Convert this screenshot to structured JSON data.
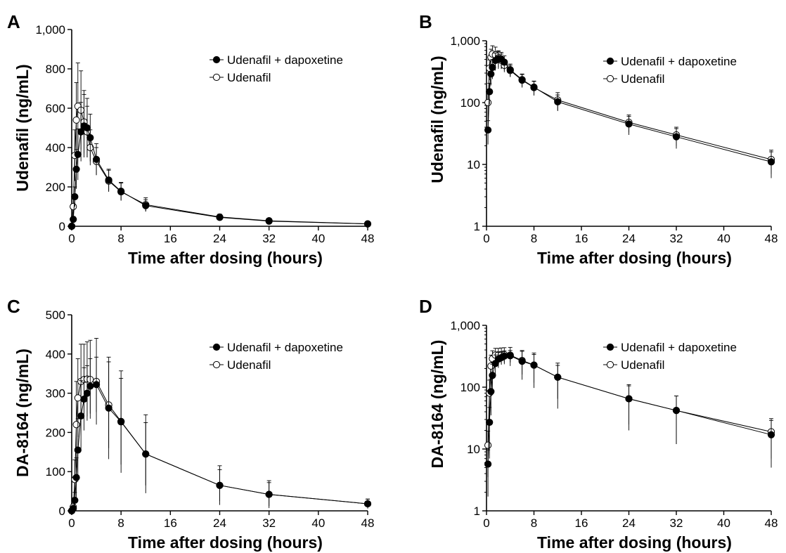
{
  "figure": {
    "x_title": "Time after dosing (hours)",
    "legend": [
      "Udenafil + dapoxetine",
      "Udenafil"
    ],
    "colors": {
      "line": "#000000",
      "filled_marker": "#000000",
      "open_marker_fill": "#ffffff"
    }
  },
  "chart_data": [
    {
      "panel": "A",
      "type": "line",
      "ylabel": "Udenafil (ng/mL)",
      "xlabel": "Time after dosing (hours)",
      "yscale": "linear",
      "xlim": [
        0,
        48
      ],
      "ylim": [
        0,
        1000
      ],
      "xticks": [
        "0",
        "8",
        "16",
        "24",
        "32",
        "40",
        "48"
      ],
      "yticks": [
        "0",
        "200",
        "400",
        "600",
        "800",
        "1,000"
      ],
      "legend_position": "top-right",
      "series": [
        {
          "name": "Udenafil + dapoxetine",
          "marker": "filled",
          "x": [
            0,
            0.25,
            0.5,
            0.75,
            1,
            1.5,
            2,
            2.5,
            3,
            4,
            6,
            8,
            12,
            24,
            32,
            48
          ],
          "y": [
            0,
            35,
            150,
            290,
            365,
            480,
            510,
            500,
            450,
            340,
            235,
            178,
            105,
            45,
            26,
            12
          ],
          "err": [
            0,
            15,
            50,
            100,
            130,
            150,
            160,
            150,
            120,
            80,
            55,
            45,
            30,
            15,
            8,
            5
          ]
        },
        {
          "name": "Udenafil",
          "marker": "open",
          "x": [
            0,
            0.25,
            0.5,
            0.75,
            1,
            1.5,
            2,
            2.5,
            3,
            4,
            6,
            8,
            12,
            24,
            32,
            48
          ],
          "y": [
            0,
            100,
            360,
            540,
            610,
            590,
            530,
            480,
            400,
            330,
            230,
            175,
            110,
            47,
            28,
            12
          ],
          "err": [
            0,
            50,
            130,
            190,
            220,
            200,
            160,
            130,
            90,
            70,
            55,
            45,
            35,
            15,
            8,
            5
          ]
        }
      ]
    },
    {
      "panel": "B",
      "type": "line",
      "ylabel": "Udenafil (ng/mL)",
      "xlabel": "Time after dosing (hours)",
      "yscale": "log",
      "xlim": [
        0,
        48
      ],
      "ylim": [
        1,
        1000
      ],
      "xticks": [
        "0",
        "8",
        "16",
        "24",
        "32",
        "40",
        "48"
      ],
      "yticks": [
        "1",
        "10",
        "100",
        "1,000"
      ],
      "legend_position": "top-right",
      "series": [
        {
          "name": "Udenafil + dapoxetine",
          "marker": "filled",
          "x": [
            0.25,
            0.5,
            0.75,
            1,
            1.5,
            2,
            2.5,
            3,
            4,
            6,
            8,
            12,
            24,
            32,
            48
          ],
          "y": [
            36,
            150,
            290,
            370,
            480,
            510,
            500,
            450,
            340,
            235,
            178,
            103,
            45,
            28,
            11
          ],
          "err": [
            15,
            55,
            100,
            130,
            150,
            160,
            150,
            120,
            80,
            55,
            45,
            30,
            15,
            10,
            5
          ]
        },
        {
          "name": "Udenafil",
          "marker": "open",
          "x": [
            0.25,
            0.5,
            0.75,
            1,
            1.5,
            2,
            2.5,
            3,
            4,
            6,
            8,
            12,
            24,
            32,
            48
          ],
          "y": [
            100,
            360,
            540,
            610,
            590,
            530,
            480,
            400,
            330,
            230,
            175,
            110,
            48,
            30,
            12
          ],
          "err": [
            50,
            130,
            190,
            220,
            200,
            160,
            130,
            90,
            70,
            55,
            45,
            35,
            15,
            10,
            5
          ]
        }
      ]
    },
    {
      "panel": "C",
      "type": "line",
      "ylabel": "DA-8164 (ng/mL)",
      "xlabel": "Time after dosing (hours)",
      "yscale": "linear",
      "xlim": [
        0,
        48
      ],
      "ylim": [
        0,
        500
      ],
      "xticks": [
        "0",
        "8",
        "16",
        "24",
        "32",
        "40",
        "48"
      ],
      "yticks": [
        "0",
        "100",
        "200",
        "300",
        "400",
        "500"
      ],
      "legend_position": "top-right",
      "series": [
        {
          "name": "Udenafil + dapoxetine",
          "marker": "filled",
          "x": [
            0,
            0.25,
            0.5,
            0.75,
            1,
            1.5,
            2,
            2.5,
            3,
            4,
            6,
            8,
            12,
            24,
            32,
            48
          ],
          "y": [
            0,
            6,
            27,
            85,
            155,
            242,
            285,
            300,
            318,
            322,
            262,
            227,
            145,
            65,
            42,
            18
          ],
          "err": [
            0,
            5,
            20,
            50,
            80,
            90,
            80,
            70,
            70,
            70,
            130,
            130,
            100,
            50,
            35,
            12
          ]
        },
        {
          "name": "Udenafil",
          "marker": "open",
          "x": [
            0,
            0.25,
            0.5,
            0.75,
            1,
            1.5,
            2,
            2.5,
            3,
            4,
            6,
            8,
            12,
            24,
            32,
            48
          ],
          "y": [
            0,
            10,
            80,
            220,
            288,
            330,
            335,
            336,
            335,
            330,
            270,
            228,
            145,
            65,
            42,
            18
          ],
          "err": [
            0,
            8,
            50,
            110,
            100,
            95,
            90,
            95,
            100,
            110,
            110,
            110,
            80,
            40,
            30,
            12
          ]
        }
      ]
    },
    {
      "panel": "D",
      "type": "line",
      "ylabel": "DA-8164 (ng/mL)",
      "xlabel": "Time after dosing (hours)",
      "yscale": "log",
      "xlim": [
        0,
        48
      ],
      "ylim": [
        1,
        1000
      ],
      "xticks": [
        "0",
        "8",
        "16",
        "24",
        "32",
        "40",
        "48"
      ],
      "yticks": [
        "1",
        "10",
        "100",
        "1,000"
      ],
      "legend_position": "top-right",
      "series": [
        {
          "name": "Udenafil + dapoxetine",
          "marker": "filled",
          "x": [
            0.25,
            0.5,
            0.75,
            1,
            1.5,
            2,
            2.5,
            3,
            4,
            6,
            8,
            12,
            24,
            32,
            48
          ],
          "y": [
            5.7,
            27,
            85,
            155,
            242,
            285,
            300,
            318,
            322,
            262,
            227,
            145,
            65,
            42,
            17
          ],
          "err": [
            4,
            20,
            50,
            80,
            90,
            80,
            70,
            70,
            70,
            130,
            130,
            100,
            45,
            30,
            12
          ]
        },
        {
          "name": "Udenafil",
          "marker": "open",
          "x": [
            0.25,
            0.5,
            0.75,
            1,
            1.5,
            2,
            2.5,
            3,
            4,
            6,
            8,
            12,
            24,
            32,
            48
          ],
          "y": [
            11.5,
            80,
            220,
            288,
            330,
            335,
            336,
            335,
            330,
            270,
            228,
            145,
            65,
            42,
            19
          ],
          "err": [
            8,
            50,
            110,
            100,
            95,
            90,
            95,
            100,
            110,
            110,
            110,
            80,
            40,
            30,
            12
          ]
        }
      ]
    }
  ]
}
